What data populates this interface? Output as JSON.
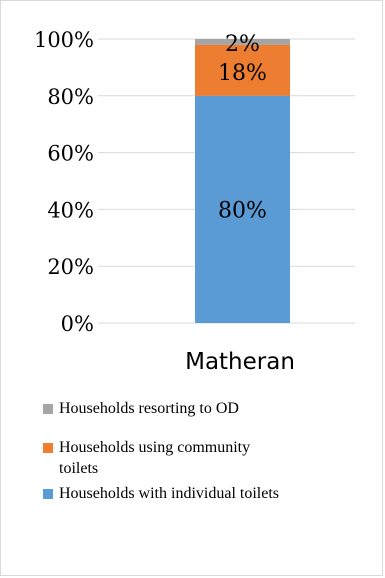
{
  "chart_data": {
    "type": "bar",
    "stacked": true,
    "categories": [
      "Matheran"
    ],
    "series": [
      {
        "name": "Households with individual toilets",
        "values": [
          80
        ],
        "color": "#5b9bd5",
        "label": "80%"
      },
      {
        "name": "Households using community toilets",
        "values": [
          18
        ],
        "color": "#ed7d31",
        "label": "18%"
      },
      {
        "name": "Households resorting to OD",
        "values": [
          2
        ],
        "color": "#a5a5a5",
        "label": "2%"
      }
    ],
    "yticks": [
      "0%",
      "20%",
      "40%",
      "60%",
      "80%",
      "100%"
    ],
    "ylim": [
      0,
      100
    ],
    "grid": true,
    "legend_position": "bottom",
    "legend_order": [
      2,
      1,
      0
    ]
  }
}
